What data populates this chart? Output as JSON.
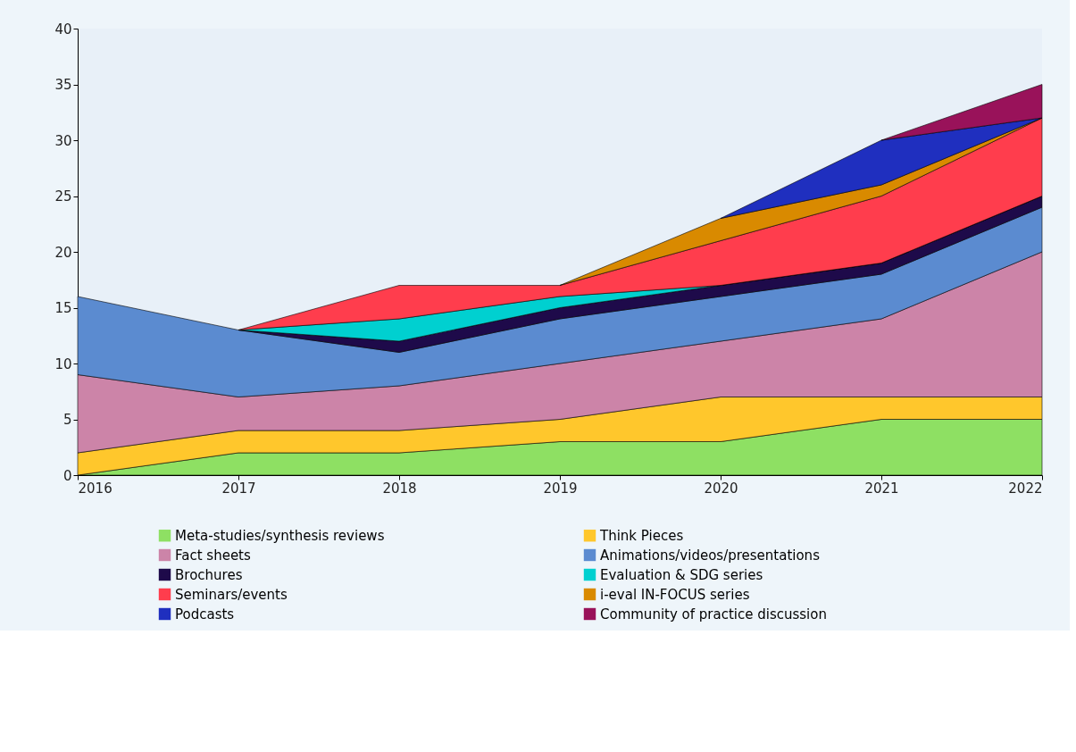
{
  "chart_data": {
    "type": "area",
    "stacked": true,
    "x": [
      2016,
      2017,
      2018,
      2019,
      2020,
      2021,
      2022
    ],
    "xlim": [
      2016,
      2022
    ],
    "xticks": [
      2016,
      2017,
      2018,
      2019,
      2020,
      2021,
      2022
    ],
    "ylim": [
      0,
      40
    ],
    "yticks": [
      0,
      5,
      10,
      15,
      20,
      25,
      30,
      35,
      40
    ],
    "grid": false,
    "legend": "bottom",
    "series": [
      {
        "name": "Meta-studies/synthesis reviews",
        "color": "#8ee063",
        "values": [
          0,
          2,
          2,
          3,
          3,
          5,
          5
        ]
      },
      {
        "name": "Think Pieces",
        "color": "#ffc72c",
        "values": [
          2,
          2,
          2,
          2,
          4,
          2,
          2
        ]
      },
      {
        "name": "Fact sheets",
        "color": "#cc84a8",
        "values": [
          7,
          3,
          4,
          5,
          5,
          7,
          13
        ]
      },
      {
        "name": "Animations/videos/presentations",
        "color": "#5b8bd0",
        "values": [
          7,
          6,
          3,
          4,
          4,
          4,
          4
        ]
      },
      {
        "name": "Brochures",
        "color": "#1e0a4a",
        "values": [
          null,
          0,
          1,
          1,
          1,
          1,
          1
        ]
      },
      {
        "name": "Evaluation & SDG series",
        "color": "#00d0d0",
        "values": [
          null,
          0,
          2,
          1,
          0,
          0,
          0
        ]
      },
      {
        "name": "Seminars/events",
        "color": "#ff3d4d",
        "values": [
          null,
          0,
          3,
          1,
          4,
          6,
          7
        ]
      },
      {
        "name": "i-eval IN-FOCUS series",
        "color": "#d98a00",
        "values": [
          null,
          null,
          null,
          0,
          2,
          1,
          0
        ]
      },
      {
        "name": "Podcasts",
        "color": "#1f2fbf",
        "values": [
          null,
          null,
          null,
          null,
          0,
          4,
          0
        ]
      },
      {
        "name": "Community of practice discussion",
        "color": "#99125a",
        "values": [
          null,
          null,
          null,
          null,
          null,
          0,
          3
        ]
      }
    ]
  }
}
